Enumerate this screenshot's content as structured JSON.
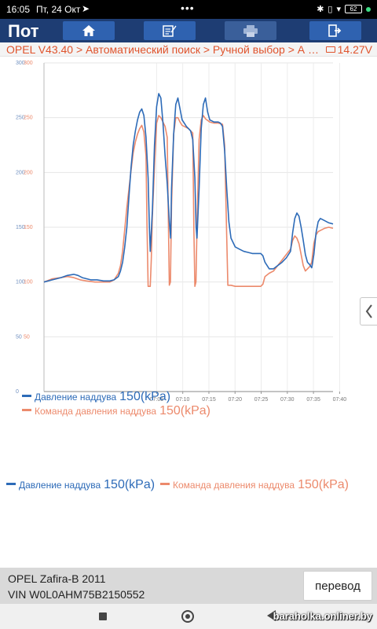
{
  "status_bar": {
    "time": "16:05",
    "date": "Пт, 24 Окт",
    "battery": "62"
  },
  "toolbar": {
    "title": "Пот",
    "buttons": [
      {
        "icon": "home-icon"
      },
      {
        "icon": "edit-icon"
      },
      {
        "icon": "print-icon"
      },
      {
        "icon": "exit-icon"
      }
    ]
  },
  "breadcrumb": {
    "path": "OPEL V43.40 > Автоматический поиск > Ручной выбор > А 17...",
    "voltage": "14.27V"
  },
  "colors": {
    "series1": "#2d6bb8",
    "series2": "#ec8a6c",
    "toolbar": "#1e3d73"
  },
  "chart_data": {
    "type": "line",
    "y_ticks": [
      "0",
      "50",
      "100",
      "150",
      "200",
      "250",
      "300"
    ],
    "ylim": [
      0,
      300
    ],
    "x_ticks": [
      "07:05",
      "07:10",
      "07:15",
      "07:20",
      "07:25",
      "07:30",
      "07:35",
      "07:40"
    ],
    "grid": true,
    "series": [
      {
        "name": "Давление наддува",
        "color": "#2d6bb8",
        "points": [
          [
            0,
            100
          ],
          [
            4,
            102
          ],
          [
            8,
            104
          ],
          [
            11,
            106
          ],
          [
            14,
            107
          ],
          [
            16,
            106
          ],
          [
            18,
            104
          ],
          [
            20,
            103
          ],
          [
            22,
            102
          ],
          [
            25,
            102
          ],
          [
            28,
            101
          ],
          [
            31,
            101
          ],
          [
            33,
            102
          ],
          [
            35,
            105
          ],
          [
            36,
            110
          ],
          [
            37,
            118
          ],
          [
            38,
            132
          ],
          [
            39,
            150
          ],
          [
            40,
            178
          ],
          [
            41,
            205
          ],
          [
            42,
            225
          ],
          [
            43,
            238
          ],
          [
            44,
            248
          ],
          [
            45,
            255
          ],
          [
            46,
            258
          ],
          [
            47,
            252
          ],
          [
            48,
            232
          ],
          [
            49,
            195
          ],
          [
            49.6,
            150
          ],
          [
            50,
            128
          ],
          [
            51,
            165
          ],
          [
            52,
            225
          ],
          [
            53,
            260
          ],
          [
            54,
            272
          ],
          [
            55,
            268
          ],
          [
            56,
            245
          ],
          [
            57,
            215
          ],
          [
            58,
            190
          ],
          [
            59,
            155
          ],
          [
            59.6,
            140
          ],
          [
            60,
            185
          ],
          [
            61,
            235
          ],
          [
            62,
            262
          ],
          [
            63,
            268
          ],
          [
            64,
            258
          ],
          [
            65,
            248
          ],
          [
            66,
            245
          ],
          [
            67,
            242
          ],
          [
            68,
            240
          ],
          [
            69,
            238
          ],
          [
            70,
            230
          ],
          [
            71,
            195
          ],
          [
            71.6,
            150
          ],
          [
            72,
            140
          ],
          [
            73,
            185
          ],
          [
            74,
            240
          ],
          [
            75,
            262
          ],
          [
            76,
            268
          ],
          [
            77,
            255
          ],
          [
            78,
            248
          ],
          [
            79,
            247
          ],
          [
            80,
            246
          ],
          [
            82,
            246
          ],
          [
            83,
            245
          ],
          [
            84,
            242
          ],
          [
            85,
            220
          ],
          [
            86,
            185
          ],
          [
            87,
            155
          ],
          [
            88,
            140
          ],
          [
            90,
            132
          ],
          [
            92,
            130
          ],
          [
            94,
            128
          ],
          [
            96,
            127
          ],
          [
            98,
            126
          ],
          [
            100,
            126
          ],
          [
            102,
            126
          ],
          [
            103,
            124
          ],
          [
            104,
            118
          ],
          [
            106,
            112
          ],
          [
            108,
            112
          ],
          [
            110,
            115
          ],
          [
            112,
            118
          ],
          [
            114,
            122
          ],
          [
            116,
            128
          ],
          [
            117,
            145
          ],
          [
            118,
            158
          ],
          [
            119,
            163
          ],
          [
            120,
            160
          ],
          [
            121,
            150
          ],
          [
            122,
            138
          ],
          [
            123,
            125
          ],
          [
            124,
            118
          ],
          [
            125,
            116
          ],
          [
            126,
            113
          ],
          [
            127,
            125
          ],
          [
            128,
            145
          ],
          [
            129,
            155
          ],
          [
            130,
            158
          ],
          [
            131,
            157
          ],
          [
            132,
            156
          ],
          [
            134,
            154
          ],
          [
            136,
            153
          ]
        ]
      },
      {
        "name": "Команда давления наддува",
        "color": "#ec8a6c",
        "points": [
          [
            0,
            100
          ],
          [
            4,
            103
          ],
          [
            8,
            104
          ],
          [
            11,
            105
          ],
          [
            14,
            104
          ],
          [
            17,
            102
          ],
          [
            20,
            101
          ],
          [
            24,
            100
          ],
          [
            28,
            100
          ],
          [
            31,
            100
          ],
          [
            33,
            102
          ],
          [
            35,
            108
          ],
          [
            36,
            115
          ],
          [
            37,
            128
          ],
          [
            38,
            148
          ],
          [
            39,
            168
          ],
          [
            40,
            185
          ],
          [
            41,
            202
          ],
          [
            42,
            218
          ],
          [
            43,
            228
          ],
          [
            44,
            235
          ],
          [
            45,
            240
          ],
          [
            46,
            243
          ],
          [
            47,
            237
          ],
          [
            48,
            215
          ],
          [
            48.5,
            150
          ],
          [
            49,
            96
          ],
          [
            50,
            96
          ],
          [
            50.5,
            120
          ],
          [
            51,
            160
          ],
          [
            52,
            205
          ],
          [
            53,
            245
          ],
          [
            54,
            252
          ],
          [
            55,
            250
          ],
          [
            56,
            246
          ],
          [
            57,
            242
          ],
          [
            58,
            232
          ],
          [
            58.5,
            160
          ],
          [
            59,
            97
          ],
          [
            59.5,
            100
          ],
          [
            60,
            170
          ],
          [
            61,
            235
          ],
          [
            62,
            250
          ],
          [
            63,
            250
          ],
          [
            64,
            246
          ],
          [
            65,
            243
          ],
          [
            66,
            242
          ],
          [
            67,
            241
          ],
          [
            68,
            240
          ],
          [
            70,
            236
          ],
          [
            70.5,
            150
          ],
          [
            71,
            96
          ],
          [
            71.5,
            100
          ],
          [
            72,
            150
          ],
          [
            73,
            230
          ],
          [
            74,
            248
          ],
          [
            75,
            252
          ],
          [
            76,
            249
          ],
          [
            78,
            246
          ],
          [
            80,
            245
          ],
          [
            82,
            245
          ],
          [
            84,
            244
          ],
          [
            85,
            225
          ],
          [
            86,
            140
          ],
          [
            86.5,
            97
          ],
          [
            88,
            97
          ],
          [
            90,
            96
          ],
          [
            92,
            96
          ],
          [
            94,
            96
          ],
          [
            96,
            96
          ],
          [
            98,
            96
          ],
          [
            100,
            96
          ],
          [
            102,
            96
          ],
          [
            103,
            98
          ],
          [
            104,
            105
          ],
          [
            106,
            108
          ],
          [
            108,
            110
          ],
          [
            110,
            115
          ],
          [
            112,
            120
          ],
          [
            114,
            125
          ],
          [
            116,
            130
          ],
          [
            117,
            138
          ],
          [
            118,
            142
          ],
          [
            119,
            140
          ],
          [
            120,
            135
          ],
          [
            121,
            125
          ],
          [
            122,
            115
          ],
          [
            123,
            110
          ],
          [
            124,
            112
          ],
          [
            125,
            114
          ],
          [
            126,
            118
          ],
          [
            127,
            135
          ],
          [
            128,
            143
          ],
          [
            129,
            146
          ],
          [
            130,
            147
          ],
          [
            131,
            148
          ],
          [
            132,
            149
          ],
          [
            134,
            150
          ],
          [
            136,
            149
          ]
        ]
      }
    ]
  },
  "legend_inline": {
    "items": [
      {
        "label": "Давление наддува",
        "value": "150(kPa)"
      },
      {
        "label": "Команда давления наддува",
        "value": "150(kPa)"
      }
    ]
  },
  "legend_bottom": {
    "items": [
      {
        "label": "Давление наддува",
        "value": "150(kPa)"
      },
      {
        "label": "Команда давления наддува",
        "value": "150(kPa)"
      }
    ]
  },
  "vehicle": {
    "model": "OPEL Zafira-B 2011",
    "vin": "VIN W0L0AHM75B2150552"
  },
  "translate_label": "перевод",
  "watermark": "baraholka.onliner.by"
}
